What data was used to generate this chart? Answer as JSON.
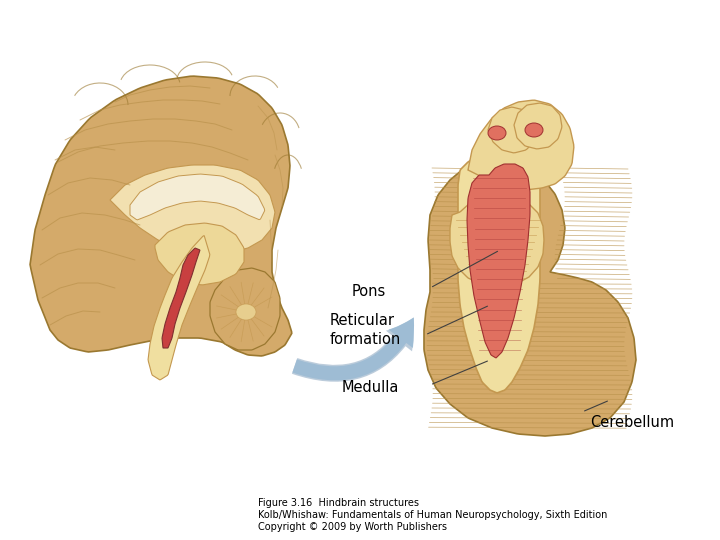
{
  "background_color": "#ffffff",
  "title_line1": "Figure 3.16  Hindbrain structures",
  "title_line2": "Kolb/Whishaw: Fundamentals of Human Neuropsychology, Sixth Edition",
  "title_line3": "Copyright © 2009 by Worth Publishers",
  "title_fontsize": 7.0,
  "label_fontsize": 10.5,
  "fig_width": 7.2,
  "fig_height": 5.4,
  "colors": {
    "brain_tan": "#D4AA6A",
    "brain_mid": "#C49850",
    "brain_light": "#EDD898",
    "brain_inner": "#F2E0B0",
    "cream_stem": "#F0DFA0",
    "white_matter": "#F5EDD5",
    "red_struct": "#C84040",
    "red_light": "#E07060",
    "sulcus": "#B8904A",
    "arrow_blue": "#9BBBD4",
    "arrow_outline": "#7A9AB8",
    "dark_outline": "#9A7830"
  }
}
